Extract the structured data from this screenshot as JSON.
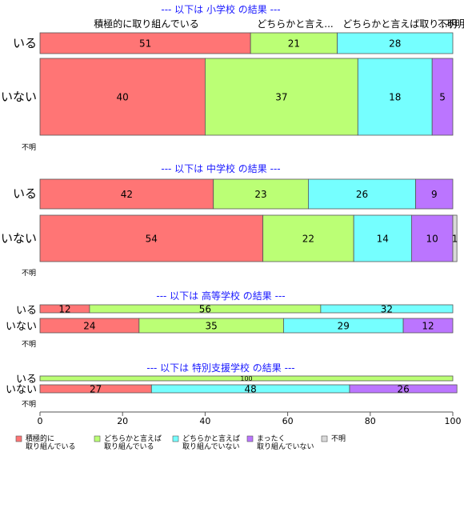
{
  "chart_data": {
    "type": "bar",
    "orientation": "horizontal",
    "stacked": true,
    "xlim": [
      0,
      100
    ],
    "x_ticks": [
      "0",
      "20",
      "40",
      "60",
      "80",
      "100"
    ],
    "top_labels": [
      "積極的に取り組んでいる",
      "どちらかと言え...",
      "どちらかと言えば取り...",
      "不明",
      "不明"
    ],
    "legend": {
      "placement": "bottom",
      "items": [
        {
          "label": "積極的に\n取り組んでいる",
          "color": "#ff7575"
        },
        {
          "label": "どちらかと言えば\n取り組んでいる",
          "color": "#bbff75"
        },
        {
          "label": "どちらかと言えば\n取り組んでいない",
          "color": "#75ffff"
        },
        {
          "label": "まったく\n取り組んでいない",
          "color": "#bb75ff"
        },
        {
          "label": "不明",
          "color": "#d9d9d9"
        }
      ]
    },
    "panels": [
      {
        "title": "--- 以下は 小学校 の結果 ---",
        "na_label": "不明",
        "rows": [
          {
            "label": "いる",
            "values": [
              51,
              21,
              28,
              0,
              0
            ],
            "value_labels": [
              "51",
              "21",
              "28",
              "",
              ""
            ]
          },
          {
            "label": "いない",
            "values": [
              40,
              37,
              18,
              5,
              0
            ],
            "value_labels": [
              "40",
              "37",
              "18",
              "5",
              ""
            ]
          }
        ]
      },
      {
        "title": "--- 以下は 中学校 の結果 ---",
        "na_label": "不明",
        "rows": [
          {
            "label": "いる",
            "values": [
              42,
              23,
              26,
              9,
              0
            ],
            "value_labels": [
              "42",
              "23",
              "26",
              "9",
              ""
            ]
          },
          {
            "label": "いない",
            "values": [
              54,
              22,
              14,
              10,
              1
            ],
            "value_labels": [
              "54",
              "22",
              "14",
              "10",
              "1"
            ]
          }
        ]
      },
      {
        "title": "--- 以下は 高等学校 の結果 ---",
        "na_label": "不明",
        "rows": [
          {
            "label": "いる",
            "values": [
              12,
              56,
              32,
              0,
              0
            ],
            "value_labels": [
              "12",
              "56",
              "32",
              "",
              ""
            ]
          },
          {
            "label": "いない",
            "values": [
              24,
              35,
              29,
              12,
              0
            ],
            "value_labels": [
              "24",
              "35",
              "29",
              "12",
              ""
            ]
          }
        ]
      },
      {
        "title": "--- 以下は 特別支援学校 の結果 ---",
        "na_label": "不明",
        "rows": [
          {
            "label": "いる",
            "values": [
              0,
              100,
              0,
              0,
              0
            ],
            "value_labels": [
              "",
              "100",
              "",
              "",
              ""
            ]
          },
          {
            "label": "いない",
            "values": [
              27,
              0,
              48,
              26,
              0
            ],
            "value_labels": [
              "27",
              "",
              "48",
              "26",
              ""
            ]
          }
        ]
      }
    ]
  }
}
